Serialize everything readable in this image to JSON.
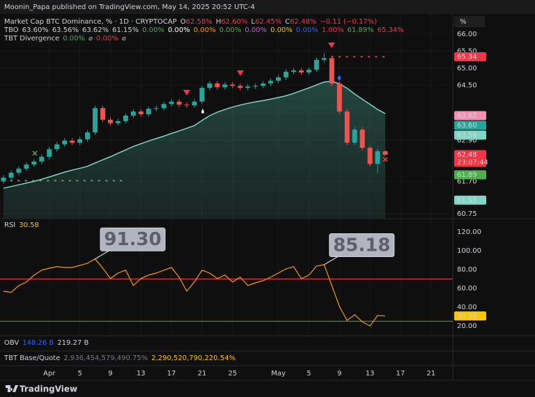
{
  "header": {
    "text": "Moonin_Papa published on TradingView.com, May 14, 2025 20:52 UTC-4"
  },
  "toolbar": {
    "percent": "%"
  },
  "footer": {
    "brand": "TradingView"
  },
  "legend": {
    "symbol": "Market Cap BTC Dominance, % · 1D · CRYPTOCAP",
    "ohlc": [
      {
        "key": "O",
        "value": "62.58%"
      },
      {
        "key": "H",
        "value": "62.60%"
      },
      {
        "key": "L",
        "value": "62.45%"
      },
      {
        "key": "C",
        "value": "62.48%"
      }
    ],
    "change": "−0.11 (−0.17%)",
    "tbo_values": [
      {
        "text": "63.60%",
        "color": "#d1d4dc"
      },
      {
        "text": "63.56%",
        "color": "#d1d4dc"
      },
      {
        "text": "63.62%",
        "color": "#d1d4dc"
      },
      {
        "text": "61.15%",
        "color": "#d1d4dc"
      },
      {
        "text": "0.00%",
        "color": "#4caf50"
      },
      {
        "text": "0.00%",
        "color": "#ffffff"
      },
      {
        "text": "0.00%",
        "color": "#ff9800"
      },
      {
        "text": "0.00%",
        "color": "#4caf50"
      },
      {
        "text": "0.00%",
        "color": "#ba68c8"
      },
      {
        "text": "0.00%",
        "color": "#f7c600"
      },
      {
        "text": "0.00%",
        "color": "#2962ff"
      },
      {
        "text": "1.00%",
        "color": "#f23645"
      },
      {
        "text": "61.89%",
        "color": "#4caf50"
      },
      {
        "text": "65.34%",
        "color": "#f23645"
      }
    ],
    "divergence": {
      "label": "TBT Divergence",
      "items": [
        {
          "text": "0.00%",
          "color": "#4caf50"
        },
        {
          "text": "⌀",
          "color": "#b2b5be"
        },
        {
          "text": "0.00%",
          "color": "#f23645"
        },
        {
          "text": "⌀",
          "color": "#b2b5be"
        }
      ]
    },
    "obv": {
      "label": "OBV",
      "items": [
        {
          "text": "148.26 B",
          "color": "#2962ff"
        },
        {
          "text": "219.27 B",
          "color": "#d1d4dc"
        }
      ]
    },
    "base_quote": {
      "label": "TBT Base/Quote",
      "items": [
        {
          "text": "2,936,454,579,490.75%",
          "color": "#787b86"
        },
        {
          "text": "2,290,520,790,220.54%",
          "color": "#f7c600"
        }
      ]
    }
  },
  "chart_data": [
    {
      "type": "candlestick",
      "up_color": "#26a69a",
      "down_color": "#ef5350",
      "open": [
        61.7,
        61.81,
        61.95,
        62.07,
        62.19,
        62.28,
        62.42,
        62.64,
        62.78,
        62.89,
        62.83,
        62.93,
        63.13,
        63.84,
        63.5,
        63.4,
        63.46,
        63.62,
        63.74,
        63.66,
        63.82,
        63.84,
        63.96,
        64.03,
        63.94,
        63.92,
        64.03,
        64.43,
        64.56,
        64.45,
        64.53,
        64.49,
        64.43,
        64.47,
        64.49,
        64.56,
        64.64,
        64.74,
        64.9,
        64.94,
        64.88,
        64.96,
        65.25,
        65.3,
        64.56,
        63.74,
        62.83,
        63.21,
        62.68,
        62.21,
        62.58
      ],
      "high": [
        61.88,
        62.02,
        62.14,
        62.26,
        62.35,
        62.49,
        62.71,
        62.85,
        62.96,
        62.96,
        63.0,
        63.2,
        63.91,
        63.91,
        63.57,
        63.53,
        63.69,
        63.81,
        63.81,
        63.89,
        63.91,
        64.03,
        64.1,
        64.1,
        64.01,
        64.1,
        64.5,
        64.63,
        64.63,
        64.6,
        64.6,
        64.56,
        64.54,
        64.56,
        64.63,
        64.71,
        64.81,
        64.97,
        65.01,
        65.01,
        65.03,
        65.32,
        65.45,
        65.37,
        64.63,
        63.81,
        63.28,
        63.28,
        62.75,
        62.65,
        62.6
      ],
      "low": [
        61.63,
        61.74,
        61.88,
        62.0,
        62.12,
        62.21,
        62.35,
        62.57,
        62.71,
        62.76,
        62.76,
        62.86,
        63.06,
        63.43,
        63.33,
        63.33,
        63.39,
        63.55,
        63.59,
        63.59,
        63.75,
        63.77,
        63.89,
        63.87,
        63.85,
        63.85,
        63.96,
        64.36,
        64.38,
        64.38,
        64.42,
        64.36,
        64.36,
        64.4,
        64.42,
        64.49,
        64.57,
        64.67,
        64.83,
        64.81,
        64.81,
        64.89,
        65.18,
        64.49,
        63.67,
        62.76,
        62.76,
        62.61,
        62.14,
        61.95,
        62.45
      ],
      "close": [
        61.81,
        61.95,
        62.07,
        62.19,
        62.28,
        62.42,
        62.64,
        62.78,
        62.89,
        62.83,
        62.93,
        63.13,
        63.84,
        63.5,
        63.4,
        63.46,
        63.62,
        63.74,
        63.66,
        63.82,
        63.84,
        63.96,
        64.03,
        63.94,
        63.92,
        64.03,
        64.43,
        64.56,
        64.45,
        64.53,
        64.49,
        64.43,
        64.47,
        64.49,
        64.56,
        64.64,
        64.74,
        64.9,
        64.94,
        64.88,
        64.96,
        65.25,
        65.3,
        64.56,
        63.74,
        62.83,
        63.21,
        62.68,
        62.21,
        62.58,
        62.48
      ],
      "series": [
        {
          "name": "TBO",
          "color": "#7fd6c2",
          "values": [
            61.5,
            61.55,
            61.6,
            61.65,
            61.7,
            61.76,
            61.83,
            61.9,
            61.97,
            62.03,
            62.08,
            62.14,
            62.24,
            62.33,
            62.42,
            62.52,
            62.62,
            62.72,
            62.8,
            62.88,
            62.95,
            63.02,
            63.1,
            63.17,
            63.25,
            63.33,
            63.48,
            63.62,
            63.72,
            63.8,
            63.87,
            63.93,
            63.98,
            64.02,
            64.06,
            64.1,
            64.15,
            64.2,
            64.27,
            64.35,
            64.43,
            64.52,
            64.6,
            64.62,
            64.55,
            64.42,
            64.25,
            64.1,
            63.95,
            63.8,
            63.68
          ]
        }
      ],
      "xlim": [
        -0.46,
        58.85
      ],
      "xticks": [
        {
          "value": 6,
          "label": "Apr"
        },
        {
          "value": 10,
          "label": "5"
        },
        {
          "value": 14,
          "label": "9"
        },
        {
          "value": 18,
          "label": "13"
        },
        {
          "value": 22,
          "label": "17"
        },
        {
          "value": 26,
          "label": "21"
        },
        {
          "value": 30,
          "label": "25"
        },
        {
          "value": 36,
          "label": "May"
        },
        {
          "value": 40,
          "label": "5"
        },
        {
          "value": 44,
          "label": "9"
        },
        {
          "value": 48,
          "label": "13"
        },
        {
          "value": 52,
          "label": "17"
        },
        {
          "value": 56,
          "label": "21"
        }
      ],
      "ylim": [
        60.63,
        66.59
      ],
      "yticks": [
        {
          "value": 66,
          "label": "66.00"
        },
        {
          "value": 65.5,
          "label": "65.50"
        },
        {
          "value": 65,
          "label": "65.00"
        },
        {
          "value": 64.5,
          "label": "64.50"
        },
        {
          "value": 62.9,
          "label": "62.90"
        },
        {
          "value": 61.7,
          "label": "61.70"
        },
        {
          "value": 60.75,
          "label": "60.75"
        }
      ],
      "price_labels": [
        {
          "value": 65.34,
          "label": "65.34",
          "color": "#f23645",
          "text_color": "#ffffff"
        },
        {
          "value": 63.62,
          "label": "63.62",
          "color": "#f48fb1",
          "text_color": "#131313"
        },
        {
          "value": 63.6,
          "label": "63.60",
          "color": "#26a69a",
          "text_color": "#ffffff"
        },
        {
          "value": 63.56,
          "label": "63.56",
          "color": "#7fd6c2",
          "text_color": "#131313"
        },
        {
          "value": 62.48,
          "label": "62.48",
          "color": "#f23645",
          "text_color": "#ffffff",
          "countdown": "23:07:44"
        },
        {
          "value": 61.89,
          "label": "61.89",
          "color": "#4caf50",
          "text_color": "#ffffff"
        },
        {
          "value": 61.15,
          "label": "61.15",
          "color": "#7fd6c2",
          "text_color": "#131313"
        }
      ],
      "levels": [
        {
          "value": 65.34,
          "from": 43,
          "to": 50,
          "color": "#f23645"
        },
        {
          "value": 61.72,
          "from": 0,
          "to": 16,
          "color": "#4caf50"
        }
      ]
    },
    {
      "type": "line",
      "series": [
        {
          "name": "RSI",
          "color": "#ff9800",
          "values": [
            57.0,
            55.6,
            63.0,
            66.7,
            74.1,
            79.3,
            81.5,
            83.0,
            82.2,
            82.2,
            84.4,
            86.7,
            91.3,
            81.5,
            70.4,
            76.3,
            79.3,
            63.0,
            70.4,
            74.1,
            76.3,
            79.3,
            82.2,
            71.9,
            57.0,
            66.7,
            79.3,
            76.3,
            70.4,
            74.1,
            66.7,
            71.9,
            63.0,
            65.9,
            68.1,
            71.9,
            76.3,
            80.7,
            83.0,
            70.4,
            74.1,
            83.7,
            85.18,
            63.0,
            40.7,
            25.9,
            31.9,
            24.4,
            20.0,
            31.1,
            30.58
          ],
          "value_labels": [
            null,
            null,
            null,
            null,
            null,
            null,
            null,
            null,
            null,
            null,
            null,
            null,
            "91.30",
            null,
            null,
            null,
            null,
            null,
            null,
            null,
            null,
            null,
            null,
            null,
            null,
            null,
            null,
            null,
            null,
            null,
            null,
            null,
            null,
            null,
            null,
            null,
            null,
            null,
            null,
            null,
            null,
            null,
            "85.18",
            null,
            null,
            null,
            null,
            null,
            null,
            null,
            null
          ]
        }
      ],
      "value_color": "#f7c600",
      "xlim": [
        -0.46,
        58.85
      ],
      "ylim": [
        9.6,
        132.6
      ],
      "yticks": [
        {
          "value": 120,
          "label": "120.00"
        },
        {
          "value": 100,
          "label": "100.00"
        },
        {
          "value": 80,
          "label": "80.00"
        },
        {
          "value": 60,
          "label": "60.00"
        },
        {
          "value": 40,
          "label": "40.00"
        },
        {
          "value": 20,
          "label": "20.00"
        }
      ],
      "levels": [
        {
          "value": 70,
          "color": "#f23645"
        },
        {
          "value": 25,
          "color": "#4caf50"
        }
      ]
    }
  ]
}
